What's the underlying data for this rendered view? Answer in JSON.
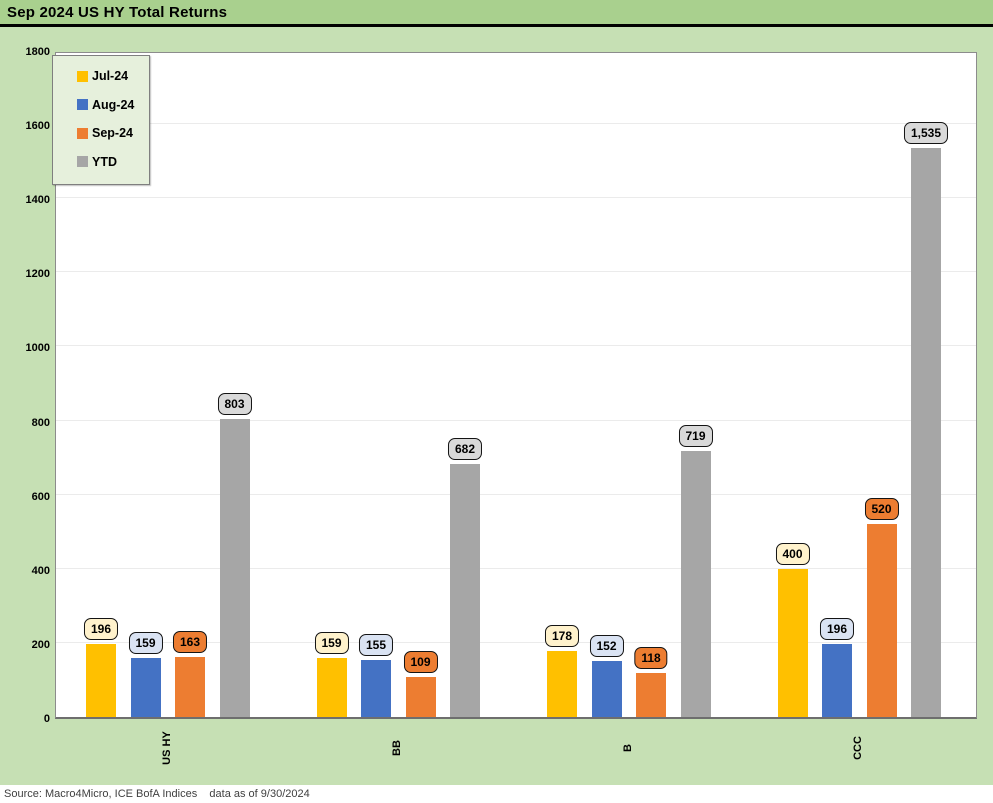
{
  "header": {
    "title": "Sep 2024 US HY Total Returns"
  },
  "footer": {
    "source": "Source: Macro4Micro, ICE BofA Indices    data as of 9/30/2024"
  },
  "colors": {
    "header_bg": "#A9D08E",
    "page_bg": "#C6E0B4",
    "plot_bg": "#FFFFFF",
    "plot_border": "#8C8C8C",
    "gridline": "#EBEBEB",
    "legend_bg": "#E6F0DC"
  },
  "chart_data": {
    "type": "bar",
    "title": "Sep 2024 US HY Total Returns",
    "categories": [
      "US HY",
      "BB",
      "B",
      "CCC"
    ],
    "series": [
      {
        "name": "Jul-24",
        "color": "#FFC000",
        "label_bg": "#FFF2CC",
        "values": [
          196,
          159,
          178,
          400
        ]
      },
      {
        "name": "Aug-24",
        "color": "#4472C4",
        "label_bg": "#DAE3F3",
        "values": [
          159,
          155,
          152,
          196
        ]
      },
      {
        "name": "Sep-24",
        "color": "#ED7D31",
        "label_bg": "#ED7D31",
        "values": [
          163,
          109,
          118,
          520
        ]
      },
      {
        "name": "YTD",
        "color": "#A6A6A6",
        "label_bg": "#D9D9D9",
        "values": [
          803,
          682,
          719,
          1535
        ]
      }
    ],
    "xlabel": "",
    "ylabel": "",
    "ylim": [
      0,
      1800
    ],
    "ytick_step": 200,
    "grid": true,
    "legend_position": "top-left",
    "data_labels": true
  }
}
